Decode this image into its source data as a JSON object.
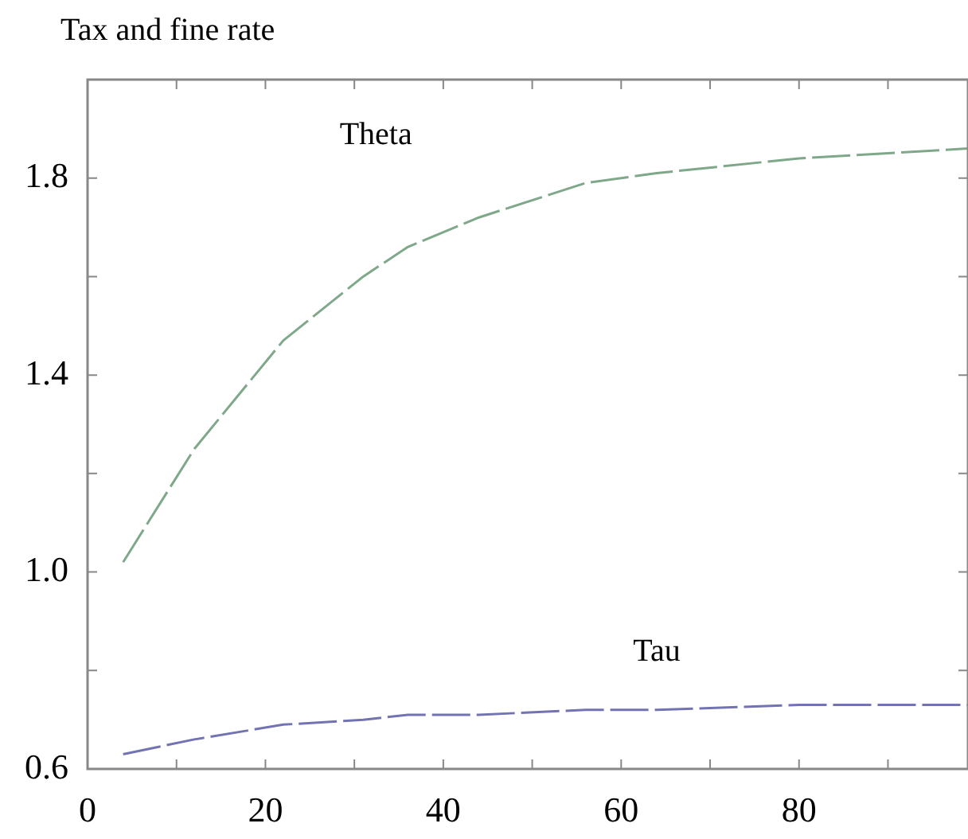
{
  "chart_data": {
    "type": "line",
    "ylabel": "Tax and fine rate",
    "xlim": [
      0,
      99
    ],
    "ylim": [
      0.6,
      2.0
    ],
    "xticks": [
      0,
      {
        "value": 10,
        "label": null
      },
      20,
      {
        "value": 30,
        "label": null
      },
      40,
      {
        "value": 50,
        "label": null
      },
      60,
      {
        "value": 70,
        "label": null
      },
      80,
      {
        "value": 90,
        "label": null
      }
    ],
    "yticks": [
      0.6,
      {
        "value": 0.8,
        "label": null
      },
      "1.0",
      {
        "value": 1.2,
        "label": null
      },
      1.4,
      {
        "value": 1.6,
        "label": null
      },
      1.8
    ],
    "series": [
      {
        "name": "Theta",
        "color": "#7fa88a",
        "x": [
          4,
          12,
          22,
          31,
          36,
          44,
          56,
          64,
          80,
          99
        ],
        "values": [
          1.02,
          1.25,
          1.47,
          1.6,
          1.66,
          1.72,
          1.79,
          1.81,
          1.84,
          1.86
        ]
      },
      {
        "name": "Tau",
        "color": "#7373b3",
        "x": [
          4,
          12,
          22,
          31,
          36,
          44,
          56,
          64,
          80,
          99
        ],
        "values": [
          0.63,
          0.66,
          0.69,
          0.7,
          0.71,
          0.71,
          0.72,
          0.72,
          0.73,
          0.73
        ]
      }
    ],
    "line_style": "dashed",
    "marker": "none",
    "grid": false,
    "legend": false
  }
}
